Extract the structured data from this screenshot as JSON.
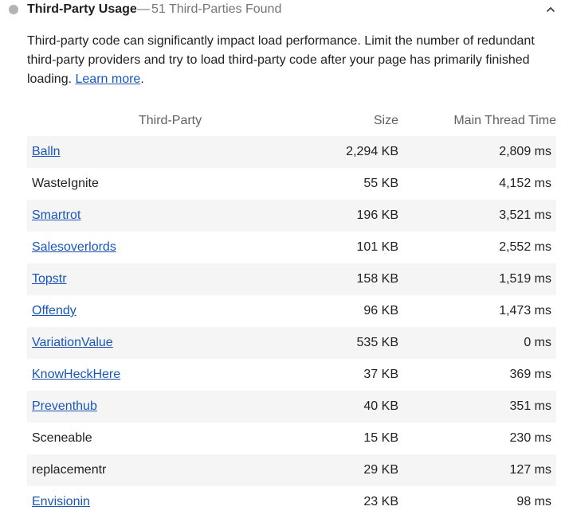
{
  "audit": {
    "title": "Third-Party Usage",
    "separator": "—",
    "display_value": "51 Third-Parties Found",
    "description": "Third-party code can significantly impact load performance. Limit the number of redundant third-party providers and try to load third-party code after your page has primarily finished loading.",
    "learn_more": "Learn more",
    "trailing_period": ".",
    "status_color": "#b3b3b3"
  },
  "table": {
    "headers": {
      "name": "Third-Party",
      "size": "Size",
      "time": "Main Thread Time"
    },
    "rows": [
      {
        "name": "Balln",
        "link": true,
        "size": "2,294 KB",
        "time": "2,809 ms"
      },
      {
        "name": "WasteIgnite",
        "link": false,
        "size": "55 KB",
        "time": "4,152 ms"
      },
      {
        "name": "Smartrot",
        "link": true,
        "size": "196 KB",
        "time": "3,521 ms"
      },
      {
        "name": "Salesoverlords",
        "link": true,
        "size": "101 KB",
        "time": "2,552 ms"
      },
      {
        "name": "Topstr",
        "link": true,
        "size": "158 KB",
        "time": "1,519 ms"
      },
      {
        "name": "Offendy",
        "link": true,
        "size": "96 KB",
        "time": "1,473 ms"
      },
      {
        "name": "VariationValue",
        "link": true,
        "size": "535 KB",
        "time": "0 ms"
      },
      {
        "name": "KnowHeckHere",
        "link": true,
        "size": "37 KB",
        "time": "369 ms"
      },
      {
        "name": "Preventhub",
        "link": true,
        "size": "40 KB",
        "time": "351 ms"
      },
      {
        "name": "Sceneable",
        "link": false,
        "size": "15 KB",
        "time": "230 ms"
      },
      {
        "name": "replacementr",
        "link": false,
        "size": "29 KB",
        "time": "127 ms"
      },
      {
        "name": "Envisionin",
        "link": true,
        "size": "23 KB",
        "time": "98 ms"
      }
    ]
  },
  "icons": {
    "status": "circle-status-icon",
    "collapse": "chevron-up-icon"
  },
  "colors": {
    "link": "#1a56b8",
    "row_shade": "#f5f5f5",
    "muted_text": "#757575"
  }
}
